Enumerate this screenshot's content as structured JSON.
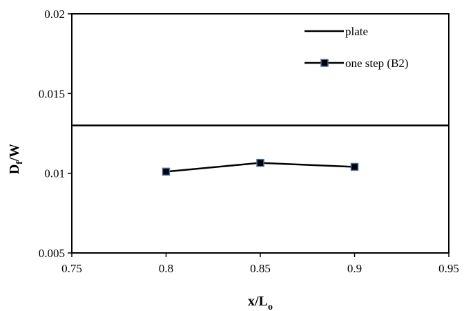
{
  "chart_data": {
    "type": "line",
    "title": "",
    "xlabel": {
      "main": "x/L",
      "sub": "o"
    },
    "ylabel": {
      "main": "D",
      "sub": "f",
      "tail": "/W"
    },
    "xlim": [
      0.75,
      0.95
    ],
    "ylim": [
      0.005,
      0.02
    ],
    "x_ticks": [
      "0.75",
      "0.8",
      "0.85",
      "0.9",
      "0.95"
    ],
    "y_ticks": [
      "0.005",
      "0.01",
      "0.015",
      "0.02"
    ],
    "grid": false,
    "legend_position": "top-right",
    "series": [
      {
        "name": "plate",
        "type": "hline",
        "y": 0.013,
        "color": "#000000",
        "marker": "none"
      },
      {
        "name": "one step (B2)",
        "x": [
          0.8,
          0.85,
          0.9
        ],
        "y": [
          0.0101,
          0.01065,
          0.0104
        ],
        "color": "#000000",
        "marker": "square",
        "marker_fill": "#000000",
        "marker_edge": "#4a6fa5"
      }
    ]
  }
}
